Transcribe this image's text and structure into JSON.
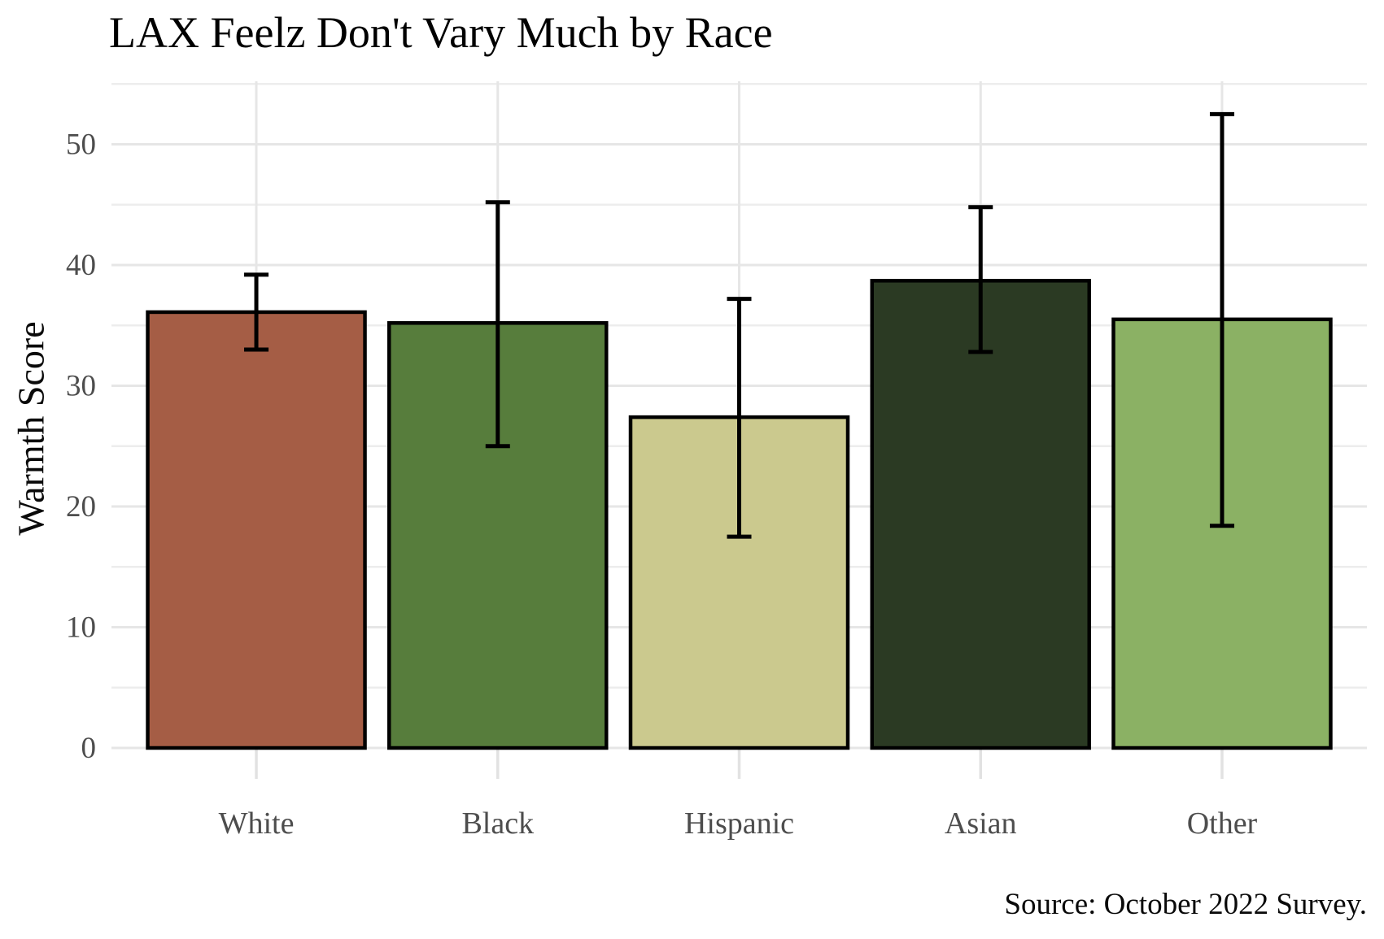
{
  "chart_data": {
    "type": "bar",
    "title": "LAX Feelz Don't Vary Much by Race",
    "ylabel": "Warmth Score",
    "xlabel": "",
    "source_note": "Source: October 2022 Survey.",
    "categories": [
      "White",
      "Black",
      "Hispanic",
      "Asian",
      "Other"
    ],
    "values": [
      36.1,
      35.2,
      27.4,
      38.7,
      35.5
    ],
    "error_low": [
      33.0,
      25.0,
      17.5,
      32.8,
      18.4
    ],
    "error_high": [
      39.2,
      45.2,
      37.2,
      44.8,
      52.5
    ],
    "bar_colors": [
      "#A55D45",
      "#577D3C",
      "#CBC98E",
      "#2B3A23",
      "#8BB164"
    ],
    "bar_border_color": "#000000",
    "errorbar_color": "#000000",
    "ylim": [
      0,
      55.2
    ],
    "yticks_major": [
      0,
      10,
      20,
      30,
      40,
      50
    ],
    "yticks_minor": [
      5,
      15,
      25,
      35,
      45,
      55
    ],
    "grid": "on",
    "legend": "none",
    "gridline_major_color": "#E6E6E6",
    "gridline_minor_color": "#EDEDED",
    "axis_tick_color": "#E2E2E2",
    "axis_text_color": "#4D4D4D",
    "background_color": "#FFFFFF"
  }
}
